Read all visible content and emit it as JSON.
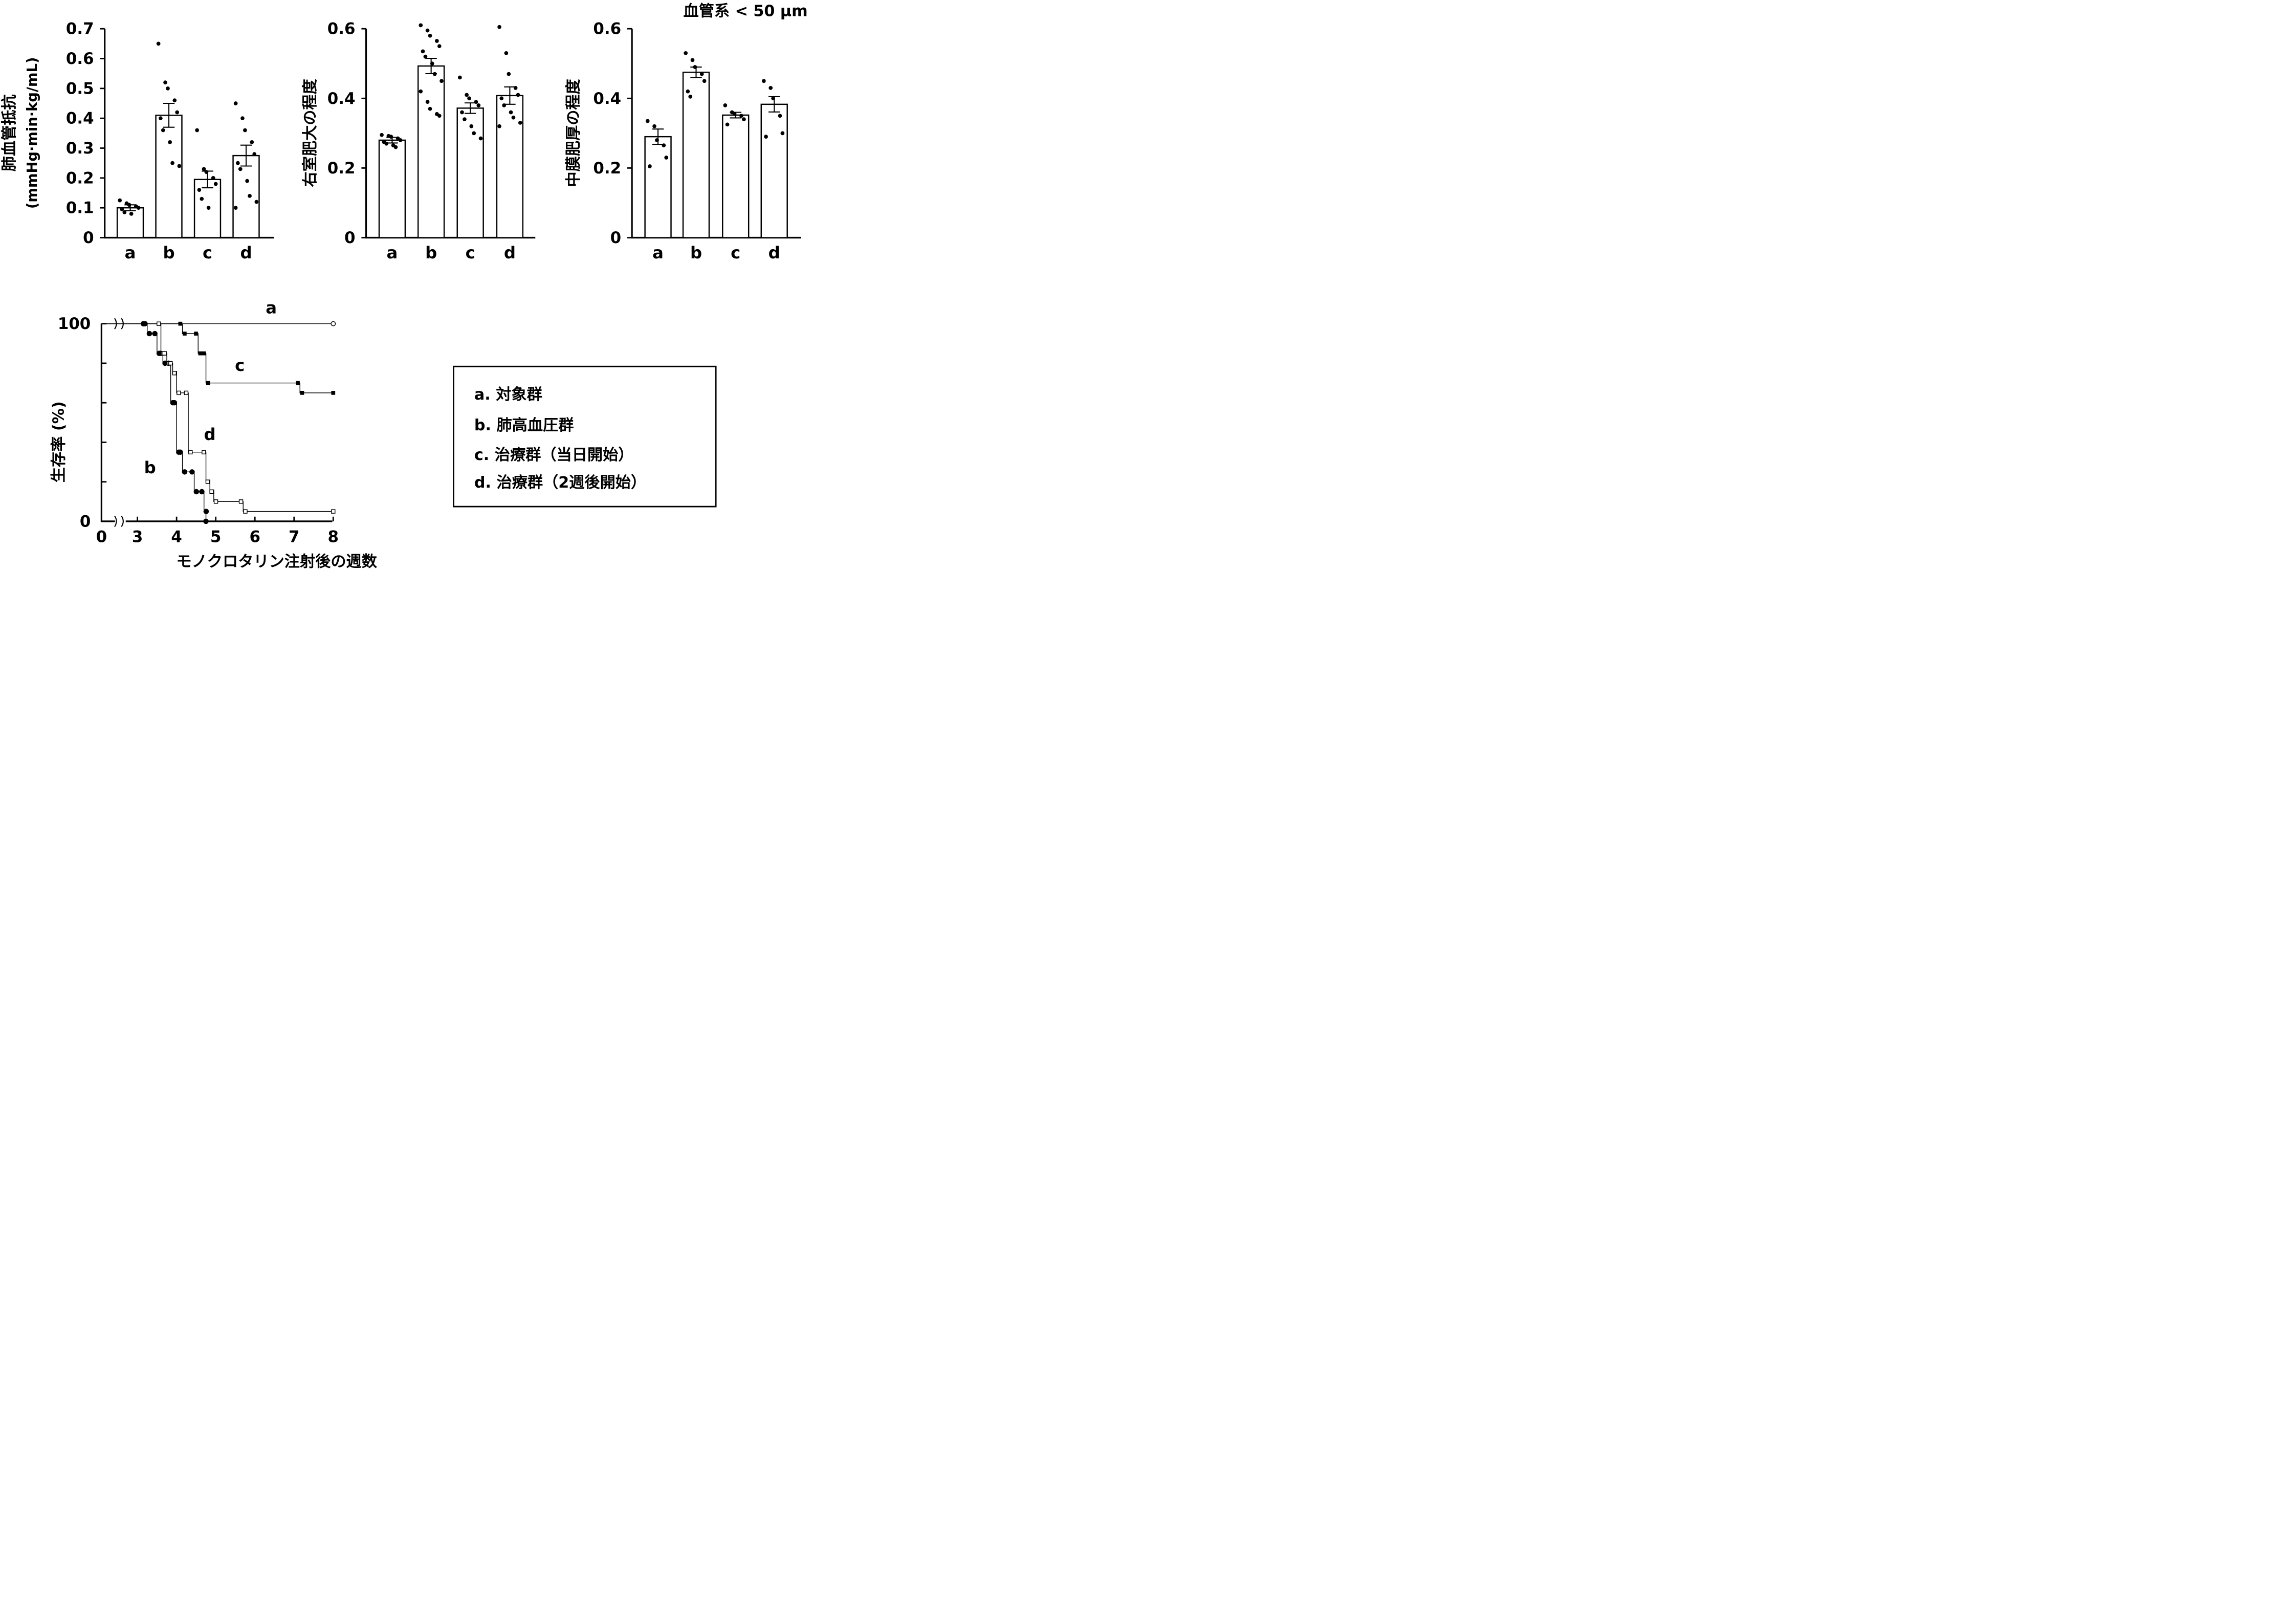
{
  "figure": {
    "panel3_header": "血管系 < 50 μm",
    "legend_entries": [
      "a.  対象群",
      "b.  肺高血圧群",
      "c.  治療群（当日開始）",
      "d.  治療群（2週後開始）"
    ]
  },
  "chart_data": [
    {
      "type": "bar",
      "ylabel_line1": "肺血管抵抗",
      "ylabel_line2": "(mmHg·min·kg/mL)",
      "ylim": [
        0,
        0.7
      ],
      "yticks": [
        0,
        0.1,
        0.2,
        0.3,
        0.4,
        0.5,
        0.6,
        0.7
      ],
      "ytick_labels": [
        "0",
        "0.1",
        "0.2",
        "0.3",
        "0.4",
        "0.5",
        "0.6",
        "0.7"
      ],
      "categories": [
        "a",
        "b",
        "c",
        "d"
      ],
      "values": [
        0.1,
        0.41,
        0.195,
        0.275
      ],
      "sem": [
        0.01,
        0.04,
        0.028,
        0.035
      ],
      "points": [
        [
          0.125,
          0.115,
          0.11,
          0.105,
          0.1,
          0.095,
          0.085,
          0.08
        ],
        [
          0.65,
          0.52,
          0.5,
          0.46,
          0.42,
          0.4,
          0.36,
          0.32,
          0.25,
          0.24
        ],
        [
          0.36,
          0.23,
          0.22,
          0.2,
          0.18,
          0.16,
          0.13,
          0.1
        ],
        [
          0.45,
          0.4,
          0.36,
          0.32,
          0.28,
          0.25,
          0.23,
          0.19,
          0.14,
          0.12,
          0.1
        ]
      ]
    },
    {
      "type": "bar",
      "ylabel": "右室肥大の程度",
      "ylim": [
        0,
        0.6
      ],
      "yticks": [
        0,
        0.2,
        0.4,
        0.6
      ],
      "ytick_labels": [
        "0",
        "0.2",
        "0.4",
        "0.6"
      ],
      "categories": [
        "a",
        "b",
        "c",
        "d"
      ],
      "values": [
        0.28,
        0.493,
        0.372,
        0.408
      ],
      "sem": [
        0.008,
        0.022,
        0.015,
        0.025
      ],
      "points": [
        [
          0.295,
          0.292,
          0.29,
          0.285,
          0.28,
          0.275,
          0.27,
          0.265,
          0.26
        ],
        [
          0.61,
          0.595,
          0.58,
          0.565,
          0.55,
          0.535,
          0.52,
          0.5,
          0.47,
          0.45,
          0.42,
          0.39,
          0.37,
          0.355,
          0.35
        ],
        [
          0.46,
          0.41,
          0.4,
          0.39,
          0.38,
          0.36,
          0.34,
          0.32,
          0.3,
          0.285
        ],
        [
          0.605,
          0.53,
          0.47,
          0.43,
          0.41,
          0.4,
          0.38,
          0.36,
          0.345,
          0.33,
          0.32
        ]
      ]
    },
    {
      "type": "bar",
      "ylabel": "中膜肥厚の程度",
      "ylim": [
        0,
        0.6
      ],
      "yticks": [
        0,
        0.2,
        0.4,
        0.6
      ],
      "ytick_labels": [
        "0",
        "0.2",
        "0.4",
        "0.6"
      ],
      "categories": [
        "a",
        "b",
        "c",
        "d"
      ],
      "values": [
        0.29,
        0.475,
        0.352,
        0.383
      ],
      "sem": [
        0.022,
        0.015,
        0.008,
        0.022
      ],
      "points": [
        [
          0.335,
          0.32,
          0.28,
          0.265,
          0.23,
          0.205
        ],
        [
          0.53,
          0.51,
          0.49,
          0.47,
          0.45,
          0.42,
          0.405
        ],
        [
          0.38,
          0.36,
          0.355,
          0.35,
          0.34,
          0.325
        ],
        [
          0.45,
          0.43,
          0.4,
          0.35,
          0.3,
          0.29
        ]
      ]
    },
    {
      "type": "line",
      "subtype": "kaplan-meier",
      "xlabel": "モノクロタリン注射後の週数",
      "ylabel": "生存率 (%)",
      "xlim": [
        0,
        8
      ],
      "xticks": [
        0,
        3,
        4,
        5,
        6,
        7,
        8
      ],
      "xtick_labels": [
        "0",
        "3",
        "4",
        "5",
        "6",
        "7",
        "8"
      ],
      "ylim": [
        0,
        100
      ],
      "ytick_labels": [
        "0",
        "100"
      ],
      "series": [
        {
          "name": "a",
          "marker": "open-circle",
          "x": [
            0,
            8
          ],
          "y": [
            100,
            100
          ]
        },
        {
          "name": "b",
          "marker": "filled-circle",
          "x": [
            0,
            3.25,
            3.5,
            3.65,
            3.85,
            4.0,
            4.15,
            4.45,
            4.7
          ],
          "y": [
            100,
            95,
            85,
            80,
            60,
            35,
            25,
            15,
            5
          ],
          "final": [
            4.75,
            0
          ]
        },
        {
          "name": "c",
          "marker": "filled-square",
          "x": [
            0,
            4.15,
            4.55,
            4.75,
            7.15
          ],
          "y": [
            100,
            95,
            85,
            70,
            65
          ],
          "final": [
            8,
            65
          ]
        },
        {
          "name": "d",
          "marker": "open-square",
          "x": [
            0,
            3.6,
            3.75,
            3.9,
            4.0,
            4.3,
            4.75,
            4.85,
            4.95,
            5.7
          ],
          "y": [
            100,
            85,
            80,
            75,
            65,
            35,
            20,
            15,
            10,
            5
          ],
          "final": [
            8,
            5
          ]
        }
      ]
    }
  ]
}
